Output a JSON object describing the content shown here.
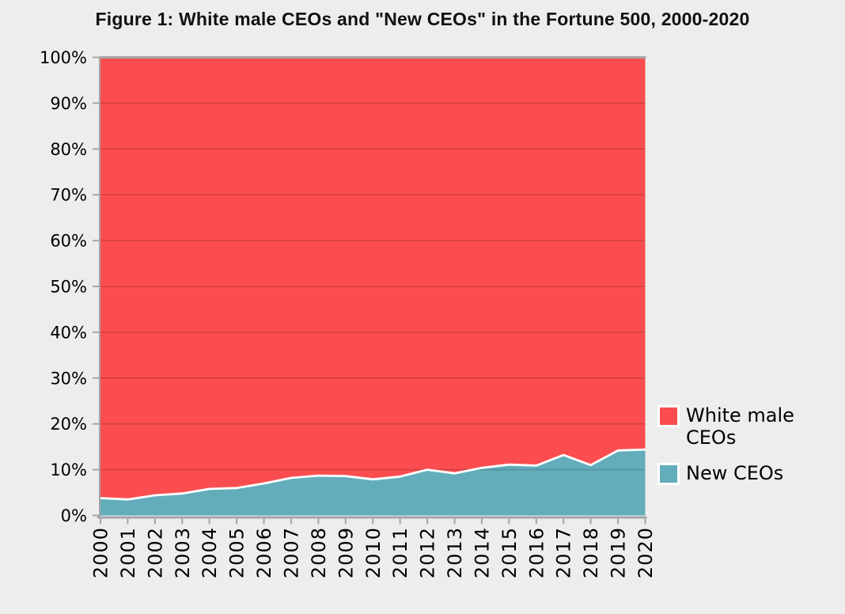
{
  "title": "Figure 1: White male CEOs and \"New CEOs\" in the Fortune 500, 2000-2020",
  "colors": {
    "background": "#ededed",
    "white_male_area": "#fb4d4f",
    "new_ceo_area": "#63adbb",
    "boundary_line": "#ffffff",
    "gridline": "rgba(0,0,0,0.16)",
    "axis": "#a6a6a6",
    "label_text": "#000000"
  },
  "legend": {
    "items": [
      {
        "label": "White male CEOs",
        "color": "#fb4d4f"
      },
      {
        "label": "New CEOs",
        "color": "#63adbb"
      }
    ]
  },
  "chart_data": {
    "type": "area",
    "stacked": true,
    "title": "Figure 1: White male CEOs and \"New CEOs\" in the Fortune 500, 2000-2020",
    "x": [
      2000,
      2001,
      2002,
      2003,
      2004,
      2005,
      2006,
      2007,
      2008,
      2009,
      2010,
      2011,
      2012,
      2013,
      2014,
      2015,
      2016,
      2017,
      2018,
      2019,
      2020
    ],
    "series": [
      {
        "name": "White male CEOs",
        "color": "#fb4d4f",
        "values": [
          96.2,
          96.5,
          95.6,
          95.2,
          94.2,
          94.0,
          93.0,
          91.8,
          91.3,
          91.4,
          92.1,
          91.5,
          90.0,
          90.8,
          89.6,
          88.9,
          89.1,
          86.8,
          89.0,
          85.8,
          85.6
        ]
      },
      {
        "name": "New CEOs",
        "color": "#63adbb",
        "values": [
          3.8,
          3.5,
          4.4,
          4.8,
          5.8,
          6.0,
          7.0,
          8.2,
          8.7,
          8.6,
          7.9,
          8.5,
          10.0,
          9.2,
          10.4,
          11.1,
          10.9,
          13.2,
          11.0,
          14.2,
          14.4
        ]
      }
    ],
    "ylim": [
      0,
      100
    ],
    "ytick_step": 10,
    "ytick_labels": [
      "0%",
      "10%",
      "20%",
      "30%",
      "40%",
      "50%",
      "60%",
      "70%",
      "80%",
      "90%",
      "100%"
    ],
    "xtick_labels": [
      "2000",
      "2001",
      "2002",
      "2003",
      "2004",
      "2005",
      "2006",
      "2007",
      "2008",
      "2009",
      "2010",
      "2011",
      "2012",
      "2013",
      "2014",
      "2015",
      "2016",
      "2017",
      "2018",
      "2019",
      "2020"
    ],
    "xlabel": "",
    "ylabel": "",
    "grid": true,
    "legend_position": "right"
  }
}
